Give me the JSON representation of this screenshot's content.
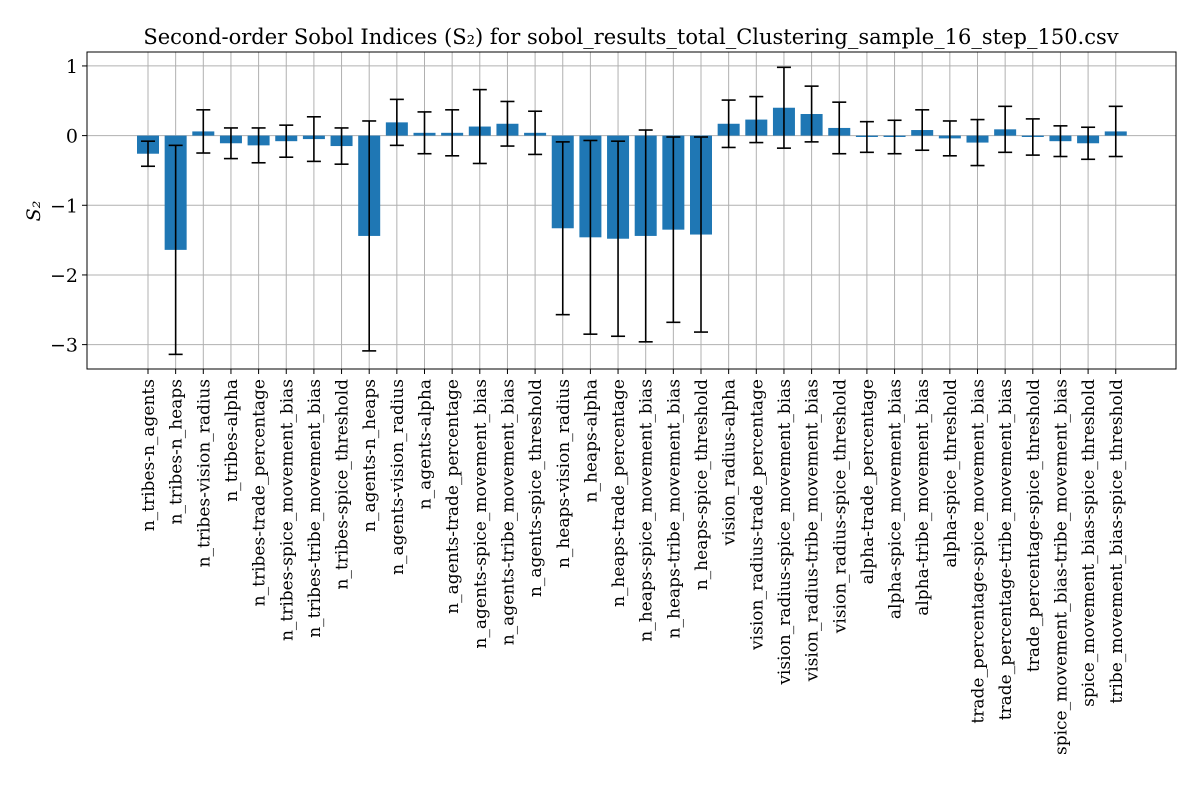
{
  "chart_data": {
    "type": "bar",
    "title": "Second-order Sobol Indices (S₂) for sobol_results_total_Clustering_sample_16_step_150.csv",
    "ylabel": "S₂",
    "xlabel": "",
    "ylim": [
      -3.35,
      1.2
    ],
    "yticks": [
      1,
      0,
      -1,
      -2,
      -3
    ],
    "ytick_labels": [
      "1",
      "0",
      "−1",
      "−2",
      "−3"
    ],
    "grid": true,
    "bar_color": "#1f77b4",
    "errorbar_color": "#000000",
    "categories": [
      "n_tribes-n_agents",
      "n_tribes-n_heaps",
      "n_tribes-vision_radius",
      "n_tribes-alpha",
      "n_tribes-trade_percentage",
      "n_tribes-spice_movement_bias",
      "n_tribes-tribe_movement_bias",
      "n_tribes-spice_threshold",
      "n_agents-n_heaps",
      "n_agents-vision_radius",
      "n_agents-alpha",
      "n_agents-trade_percentage",
      "n_agents-spice_movement_bias",
      "n_agents-tribe_movement_bias",
      "n_agents-spice_threshold",
      "n_heaps-vision_radius",
      "n_heaps-alpha",
      "n_heaps-trade_percentage",
      "n_heaps-spice_movement_bias",
      "n_heaps-tribe_movement_bias",
      "n_heaps-spice_threshold",
      "vision_radius-alpha",
      "vision_radius-trade_percentage",
      "vision_radius-spice_movement_bias",
      "vision_radius-tribe_movement_bias",
      "vision_radius-spice_threshold",
      "alpha-trade_percentage",
      "alpha-spice_movement_bias",
      "alpha-tribe_movement_bias",
      "alpha-spice_threshold",
      "trade_percentage-spice_movement_bias",
      "trade_percentage-tribe_movement_bias",
      "trade_percentage-spice_threshold",
      "spice_movement_bias-tribe_movement_bias",
      "spice_movement_bias-spice_threshold",
      "tribe_movement_bias-spice_threshold"
    ],
    "values": [
      -0.26,
      -1.64,
      0.06,
      -0.11,
      -0.14,
      -0.08,
      -0.05,
      -0.15,
      -1.44,
      0.19,
      0.04,
      0.04,
      0.13,
      0.17,
      0.04,
      -1.33,
      -1.46,
      -1.48,
      -1.44,
      -1.35,
      -1.42,
      0.17,
      0.23,
      0.4,
      0.31,
      0.11,
      -0.02,
      -0.02,
      0.08,
      -0.04,
      -0.1,
      0.09,
      -0.02,
      -0.08,
      -0.11,
      0.06
    ],
    "errors": [
      0.18,
      1.5,
      0.31,
      0.22,
      0.25,
      0.23,
      0.32,
      0.26,
      1.65,
      0.33,
      0.3,
      0.33,
      0.53,
      0.32,
      0.31,
      1.24,
      1.39,
      1.4,
      1.52,
      1.33,
      1.4,
      0.34,
      0.33,
      0.58,
      0.4,
      0.37,
      0.22,
      0.24,
      0.29,
      0.25,
      0.33,
      0.33,
      0.26,
      0.22,
      0.23,
      0.36
    ]
  }
}
